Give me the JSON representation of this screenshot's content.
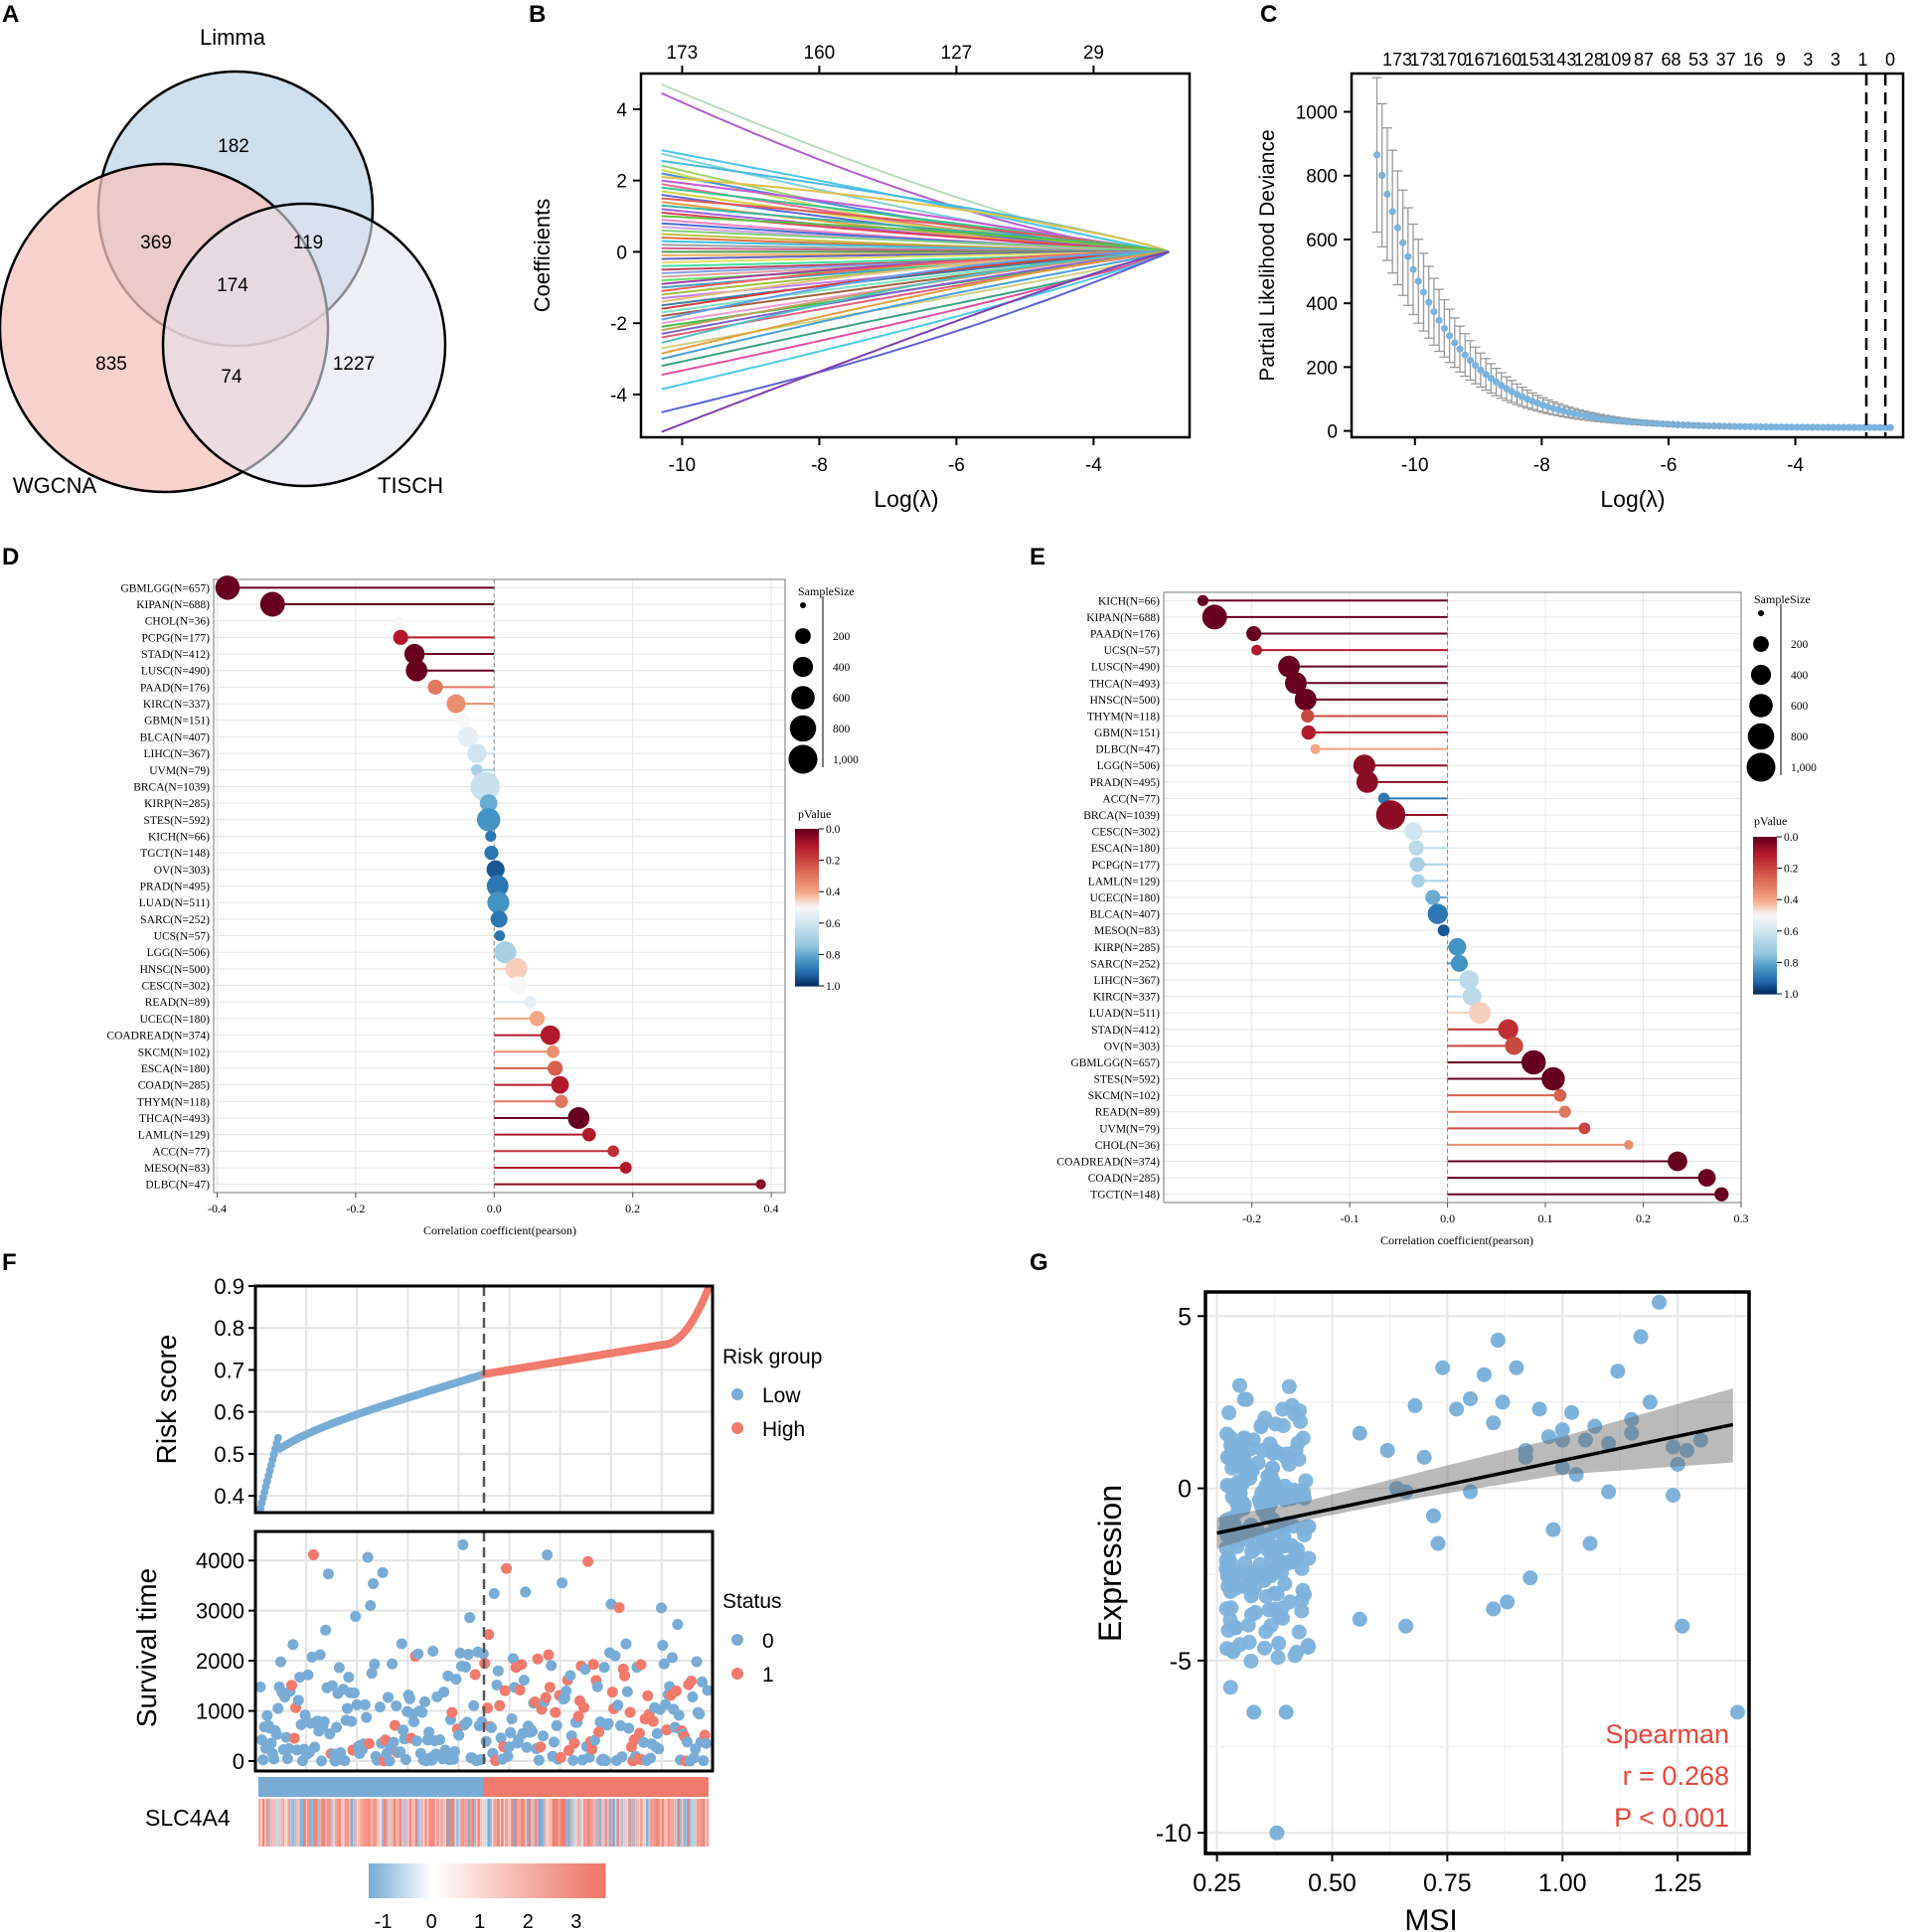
{
  "panel_labels": [
    "A",
    "B",
    "C",
    "D",
    "E",
    "F",
    "G"
  ],
  "chart_data": [
    {
      "panel": "A",
      "type": "venn",
      "sets": [
        "Limma",
        "WGCNA",
        "TISCH"
      ],
      "regions": {
        "limma_only": "182",
        "wgcna_only": "835",
        "tisch_only": "1227",
        "limma_wgcna": "369",
        "limma_tisch": "119",
        "wgcna_tisch": "74",
        "all": "174"
      },
      "colors": {
        "Limma": "#c9dcec",
        "WGCNA": "#f5c3bd",
        "TISCH": "#e3e2ee"
      }
    },
    {
      "panel": "B",
      "type": "line",
      "title": "",
      "xlabel": "Log(λ)",
      "ylabel": "Coefficients",
      "xlim": [
        -10.6,
        -2.6
      ],
      "ylim": [
        -5.2,
        5.0
      ],
      "xticks": [
        "-10",
        "-8",
        "-6",
        "-4"
      ],
      "xtick_values": [
        -10,
        -8,
        -6,
        -4
      ],
      "yticks": [
        "-4",
        "-2",
        "0",
        "2",
        "4"
      ],
      "ytick_values": [
        -4,
        -2,
        0,
        2,
        4
      ],
      "top_axis_labels": [
        "173",
        "160",
        "127",
        "29"
      ],
      "top_axis_values": [
        -10,
        -8,
        -6,
        -4
      ],
      "series_start_values": [
        4.7,
        4.45,
        2.85,
        2.75,
        2.55,
        2.42,
        2.3,
        2.2,
        2.1,
        2.0,
        1.9,
        1.8,
        1.7,
        1.6,
        1.5,
        1.4,
        1.3,
        1.2,
        1.1,
        1.0,
        0.9,
        0.8,
        0.7,
        0.6,
        0.5,
        0.4,
        0.3,
        0.2,
        0.1,
        0.0,
        -0.1,
        -0.2,
        -0.3,
        -0.4,
        -0.5,
        -0.6,
        -0.7,
        -0.8,
        -0.9,
        -1.0,
        -1.1,
        -1.2,
        -1.3,
        -1.4,
        -1.5,
        -1.6,
        -1.7,
        -1.8,
        -1.9,
        -2.0,
        -2.1,
        -2.2,
        -2.3,
        -2.4,
        -2.55,
        -2.7,
        -2.85,
        -3.0,
        -3.2,
        -3.45,
        -3.85,
        -4.5,
        -5.05
      ],
      "series_colors": [
        "#b8dcc0",
        "#b15fcf",
        "#4ec3e8",
        "#7fd0d8",
        "#49b8e0",
        "#9fd36b",
        "#c9e05b",
        "#4a8fd4",
        "#e0c04a",
        "#c45bd4",
        "#e86a9a",
        "#3cc48a",
        "#d4d040",
        "#5a6ad8",
        "#e05a5a",
        "#e8a040",
        "#40b0a0",
        "#a060e0",
        "#e0405a",
        "#60c040",
        "#f080c0",
        "#4070d0",
        "#d0a0e0",
        "#80d080",
        "#c0c040",
        "#e07040",
        "#40c0e0",
        "#a0a0a0",
        "#d06090",
        "#50a050",
        "#f0b060",
        "#6060c0",
        "#e0e060",
        "#40e0a0",
        "#c04060",
        "#80a0e0",
        "#e0a0a0",
        "#60e060",
        "#a040a0",
        "#40a0c0",
        "#f06060",
        "#a0c040",
        "#c080f0",
        "#e0c080",
        "#4080a0",
        "#d04040",
        "#80e0c0",
        "#a06040",
        "#60a0f0",
        "#f0a0d0",
        "#40c040",
        "#c0a060",
        "#8060d0",
        "#e06080",
        "#50c0c0",
        "#d0d080",
        "#e0a040",
        "#4a9fd8",
        "#3aa080",
        "#e050a0",
        "#50c8e8",
        "#6060d8",
        "#7c3fb0"
      ]
    },
    {
      "panel": "C",
      "type": "scatter",
      "xlabel": "Log(λ)",
      "ylabel": "Partial Likelihood Deviance",
      "xlim": [
        -11.0,
        -2.3
      ],
      "ylim": [
        -20,
        1120
      ],
      "xticks": [
        "-10",
        "-8",
        "-6",
        "-4"
      ],
      "xtick_values": [
        -10,
        -8,
        -6,
        -4
      ],
      "yticks": [
        "0",
        "200",
        "400",
        "600",
        "800",
        "1000"
      ],
      "ytick_values": [
        0,
        200,
        400,
        600,
        800,
        1000
      ],
      "top_axis_labels": [
        "173",
        "173",
        "170",
        "167",
        "160",
        "153",
        "143",
        "128",
        "109",
        "87",
        "68",
        "53",
        "37",
        "16",
        "9",
        "3",
        "3",
        "1",
        "0"
      ],
      "lambda_min_line": -2.88,
      "lambda_1se_line": -2.58,
      "deviance_points": {
        "x_start": -10.6,
        "x_end": -2.5,
        "count": 100,
        "y_at_start": 865,
        "decay": "exponential to ~10 by x=-7"
      },
      "point_color": "#7ab3dd",
      "errorbar_color": "#999999"
    },
    {
      "panel": "D",
      "type": "lollipop",
      "xlabel": "Correlation coefficient(pearson)",
      "xlim": [
        -0.405,
        0.42
      ],
      "xticks": [
        "-0.4",
        "-0.2",
        "0.0",
        "0.2",
        "0.4"
      ],
      "xtick_values": [
        -0.4,
        -0.2,
        0.0,
        0.2,
        0.4
      ],
      "categories": [
        "GBMLGG(N=657)",
        "KIPAN(N=688)",
        "CHOL(N=36)",
        "PCPG(N=177)",
        "STAD(N=412)",
        "LUSC(N=490)",
        "PAAD(N=176)",
        "KIRC(N=337)",
        "GBM(N=151)",
        "BLCA(N=407)",
        "LIHC(N=367)",
        "UVM(N=79)",
        "BRCA(N=1039)",
        "KIRP(N=285)",
        "STES(N=592)",
        "KICH(N=66)",
        "TGCT(N=148)",
        "OV(N=303)",
        "PRAD(N=495)",
        "LUAD(N=511)",
        "SARC(N=252)",
        "UCS(N=57)",
        "LGG(N=506)",
        "HNSC(N=500)",
        "CESC(N=302)",
        "READ(N=89)",
        "UCEC(N=180)",
        "COADREAD(N=374)",
        "SKCM(N=102)",
        "ESCA(N=180)",
        "COAD(N=285)",
        "THYM(N=118)",
        "THCA(N=493)",
        "LAML(N=129)",
        "ACC(N=77)",
        "MESO(N=83)",
        "DLBC(N=47)"
      ],
      "values": [
        -0.385,
        -0.32,
        -0.138,
        -0.135,
        -0.115,
        -0.112,
        -0.085,
        -0.055,
        -0.045,
        -0.038,
        -0.025,
        -0.025,
        -0.013,
        -0.008,
        -0.008,
        -0.005,
        -0.004,
        0.002,
        0.005,
        0.006,
        0.007,
        0.008,
        0.016,
        0.032,
        0.035,
        0.052,
        0.062,
        0.081,
        0.085,
        0.088,
        0.095,
        0.097,
        0.122,
        0.137,
        0.172,
        0.19,
        0.385
      ],
      "pvalues": [
        0.0,
        0.0,
        0.5,
        0.1,
        0.0,
        0.0,
        0.3,
        0.35,
        0.5,
        0.55,
        0.6,
        0.7,
        0.62,
        0.8,
        0.85,
        0.9,
        0.9,
        0.95,
        0.9,
        0.85,
        0.9,
        0.9,
        0.7,
        0.45,
        0.5,
        0.55,
        0.4,
        0.1,
        0.35,
        0.25,
        0.1,
        0.3,
        0.0,
        0.1,
        0.15,
        0.1,
        0.05
      ],
      "sizes": [
        657,
        688,
        36,
        177,
        412,
        490,
        176,
        337,
        151,
        407,
        367,
        79,
        1039,
        285,
        592,
        66,
        148,
        303,
        495,
        511,
        252,
        57,
        506,
        500,
        302,
        89,
        180,
        374,
        102,
        180,
        285,
        118,
        493,
        129,
        77,
        83,
        47
      ],
      "legend_size_title": "SampleSize",
      "legend_size_labels": [
        "200",
        "400",
        "600",
        "800",
        "1,000"
      ],
      "legend_size_values": [
        200,
        400,
        600,
        800,
        1000
      ],
      "legend_p_title": "pValue",
      "legend_p_labels": [
        "0.0",
        "0.2",
        "0.4",
        "0.6",
        "0.8",
        "1.0"
      ]
    },
    {
      "panel": "E",
      "type": "lollipop",
      "xlabel": "Correlation coefficient(pearson)",
      "xlim": [
        -0.29,
        0.3
      ],
      "xticks": [
        "-0.2",
        "-0.1",
        "0.0",
        "0.1",
        "0.2",
        "0.3"
      ],
      "xtick_values": [
        -0.2,
        -0.1,
        0.0,
        0.1,
        0.2,
        0.3
      ],
      "categories": [
        "KICH(N=66)",
        "KIPAN(N=688)",
        "PAAD(N=176)",
        "UCS(N=57)",
        "LUSC(N=490)",
        "THCA(N=493)",
        "HNSC(N=500)",
        "THYM(N=118)",
        "GBM(N=151)",
        "DLBC(N=47)",
        "LGG(N=506)",
        "PRAD(N=495)",
        "ACC(N=77)",
        "BRCA(N=1039)",
        "CESC(N=302)",
        "ESCA(N=180)",
        "PCPG(N=177)",
        "LAML(N=129)",
        "UCEC(N=180)",
        "BLCA(N=407)",
        "MESO(N=83)",
        "KIRP(N=285)",
        "SARC(N=252)",
        "LIHC(N=367)",
        "KIRC(N=337)",
        "LUAD(N=511)",
        "STAD(N=412)",
        "OV(N=303)",
        "GBMLGG(N=657)",
        "STES(N=592)",
        "SKCM(N=102)",
        "READ(N=89)",
        "UVM(N=79)",
        "CHOL(N=36)",
        "COADREAD(N=374)",
        "COAD(N=285)",
        "TGCT(N=148)"
      ],
      "values": [
        -0.25,
        -0.238,
        -0.198,
        -0.195,
        -0.162,
        -0.155,
        -0.145,
        -0.143,
        -0.142,
        -0.135,
        -0.085,
        -0.082,
        -0.065,
        -0.058,
        -0.035,
        -0.032,
        -0.031,
        -0.03,
        -0.015,
        -0.01,
        -0.004,
        0.01,
        0.012,
        0.022,
        0.025,
        0.033,
        0.062,
        0.068,
        0.088,
        0.108,
        0.115,
        0.12,
        0.14,
        0.185,
        0.235,
        0.265,
        0.28
      ],
      "pvalues": [
        0.0,
        0.0,
        0.0,
        0.1,
        0.0,
        0.0,
        0.0,
        0.2,
        0.1,
        0.4,
        0.05,
        0.05,
        0.9,
        0.05,
        0.6,
        0.65,
        0.7,
        0.7,
        0.8,
        0.9,
        0.95,
        0.85,
        0.85,
        0.65,
        0.65,
        0.45,
        0.15,
        0.2,
        0.0,
        0.0,
        0.25,
        0.3,
        0.2,
        0.35,
        0.0,
        0.0,
        0.0
      ],
      "sizes": [
        66,
        688,
        176,
        57,
        490,
        493,
        500,
        118,
        151,
        47,
        506,
        495,
        77,
        1039,
        302,
        180,
        177,
        129,
        180,
        407,
        83,
        285,
        252,
        367,
        337,
        511,
        412,
        303,
        657,
        592,
        102,
        89,
        79,
        36,
        374,
        285,
        148
      ],
      "legend_size_title": "SampleSize",
      "legend_size_labels": [
        "200",
        "400",
        "600",
        "800",
        "1,000"
      ],
      "legend_size_values": [
        200,
        400,
        600,
        800,
        1000
      ],
      "legend_p_title": "pValue",
      "legend_p_labels": [
        "0.0",
        "0.2",
        "0.4",
        "0.6",
        "0.8",
        "1.0"
      ]
    },
    {
      "panel": "F",
      "type": "risk_plot",
      "risk_score": {
        "ylabel": "Risk score",
        "ylim": [
          0.36,
          0.9
        ],
        "yticks": [
          "0.4",
          "0.5",
          "0.6",
          "0.7",
          "0.8",
          "0.9"
        ],
        "ytick_values": [
          0.4,
          0.5,
          0.6,
          0.7,
          0.8,
          0.9
        ],
        "low_range": [
          0.37,
          0.69
        ],
        "high_range": [
          0.69,
          0.89
        ],
        "cutoff_fraction": 0.5
      },
      "survival": {
        "ylabel": "Survival time",
        "ylim": [
          0,
          4500
        ],
        "yticks": [
          "0",
          "1000",
          "2000",
          "3000",
          "4000"
        ],
        "ytick_values": [
          0,
          1000,
          2000,
          3000,
          4000
        ]
      },
      "legend_risk_title": "Risk group",
      "legend_risk_items": [
        "Low",
        "High"
      ],
      "legend_status_title": "Status",
      "legend_status_items": [
        "0",
        "1"
      ],
      "gene": "SLC4A4",
      "colorbar_ticks": [
        "-1",
        "0",
        "1",
        "2",
        "3"
      ],
      "colorbar_values": [
        -1,
        0,
        1,
        2,
        3
      ],
      "low_color": "#78acd6",
      "high_color": "#f07a6c"
    },
    {
      "panel": "G",
      "type": "scatter",
      "xlabel": "MSI",
      "ylabel": "Expression",
      "xlim": [
        0.225,
        1.405
      ],
      "ylim": [
        -10.6,
        5.7
      ],
      "xticks": [
        "0.25",
        "0.50",
        "0.75",
        "1.00",
        "1.25"
      ],
      "xtick_values": [
        0.25,
        0.5,
        0.75,
        1.0,
        1.25
      ],
      "yticks": [
        "5",
        "0",
        "-5",
        "-10"
      ],
      "ytick_values": [
        5,
        0,
        -5,
        -10
      ],
      "fit_line": {
        "x": [
          0.25,
          1.37
        ],
        "y": [
          -1.3,
          1.85
        ]
      },
      "ci_band": {
        "x": [
          0.25,
          0.45,
          0.7,
          1.0,
          1.37
        ],
        "lower": [
          -1.75,
          -0.9,
          -0.25,
          0.4,
          0.75
        ],
        "upper": [
          -0.85,
          -0.35,
          0.5,
          1.5,
          2.9
        ]
      },
      "points_far": [
        [
          0.38,
          -10.0
        ],
        [
          0.4,
          -6.5
        ],
        [
          0.33,
          -6.5
        ],
        [
          0.56,
          -3.8
        ],
        [
          0.66,
          -4.0
        ],
        [
          0.85,
          -3.5
        ],
        [
          0.88,
          -3.3
        ],
        [
          0.93,
          -2.6
        ],
        [
          0.98,
          -1.2
        ],
        [
          1.06,
          -1.6
        ],
        [
          1.1,
          -0.1
        ],
        [
          1.24,
          -0.2
        ],
        [
          1.26,
          -4.0
        ],
        [
          1.38,
          -6.5
        ],
        [
          0.56,
          1.6
        ],
        [
          0.62,
          1.1
        ],
        [
          0.66,
          -0.1
        ],
        [
          0.68,
          2.4
        ],
        [
          0.72,
          -0.8
        ],
        [
          0.73,
          -1.6
        ],
        [
          0.74,
          3.5
        ],
        [
          0.77,
          2.3
        ],
        [
          0.8,
          2.6
        ],
        [
          0.8,
          -0.1
        ],
        [
          0.83,
          3.3
        ],
        [
          0.85,
          1.9
        ],
        [
          0.86,
          4.3
        ],
        [
          0.87,
          2.5
        ],
        [
          0.9,
          3.5
        ],
        [
          0.92,
          1.1
        ],
        [
          0.95,
          2.3
        ],
        [
          0.97,
          1.5
        ],
        [
          1.0,
          1.7
        ],
        [
          1.0,
          0.6
        ],
        [
          1.02,
          2.2
        ],
        [
          1.03,
          0.4
        ],
        [
          1.05,
          1.4
        ],
        [
          1.07,
          1.8
        ],
        [
          1.1,
          1.3
        ],
        [
          1.12,
          3.4
        ],
        [
          1.15,
          1.6
        ],
        [
          1.17,
          4.4
        ],
        [
          1.19,
          2.5
        ],
        [
          1.21,
          5.4
        ],
        [
          1.24,
          1.2
        ],
        [
          1.27,
          1.1
        ],
        [
          1.3,
          1.4
        ],
        [
          1.15,
          2.0
        ],
        [
          0.7,
          0.9
        ],
        [
          0.92,
          0.9
        ],
        [
          1.0,
          1.4
        ],
        [
          0.64,
          0.0
        ],
        [
          1.25,
          0.7
        ]
      ],
      "points_dense_region": {
        "x_range": [
          0.27,
          0.45
        ],
        "y_center": -1.0,
        "y_spread": 2.4,
        "count": 240,
        "seed": 7
      },
      "stats": [
        "Spearman",
        "r = 0.268",
        "P < 0.001"
      ],
      "point_color": "#7eb2db",
      "stats_color": "#e8463a"
    }
  ]
}
